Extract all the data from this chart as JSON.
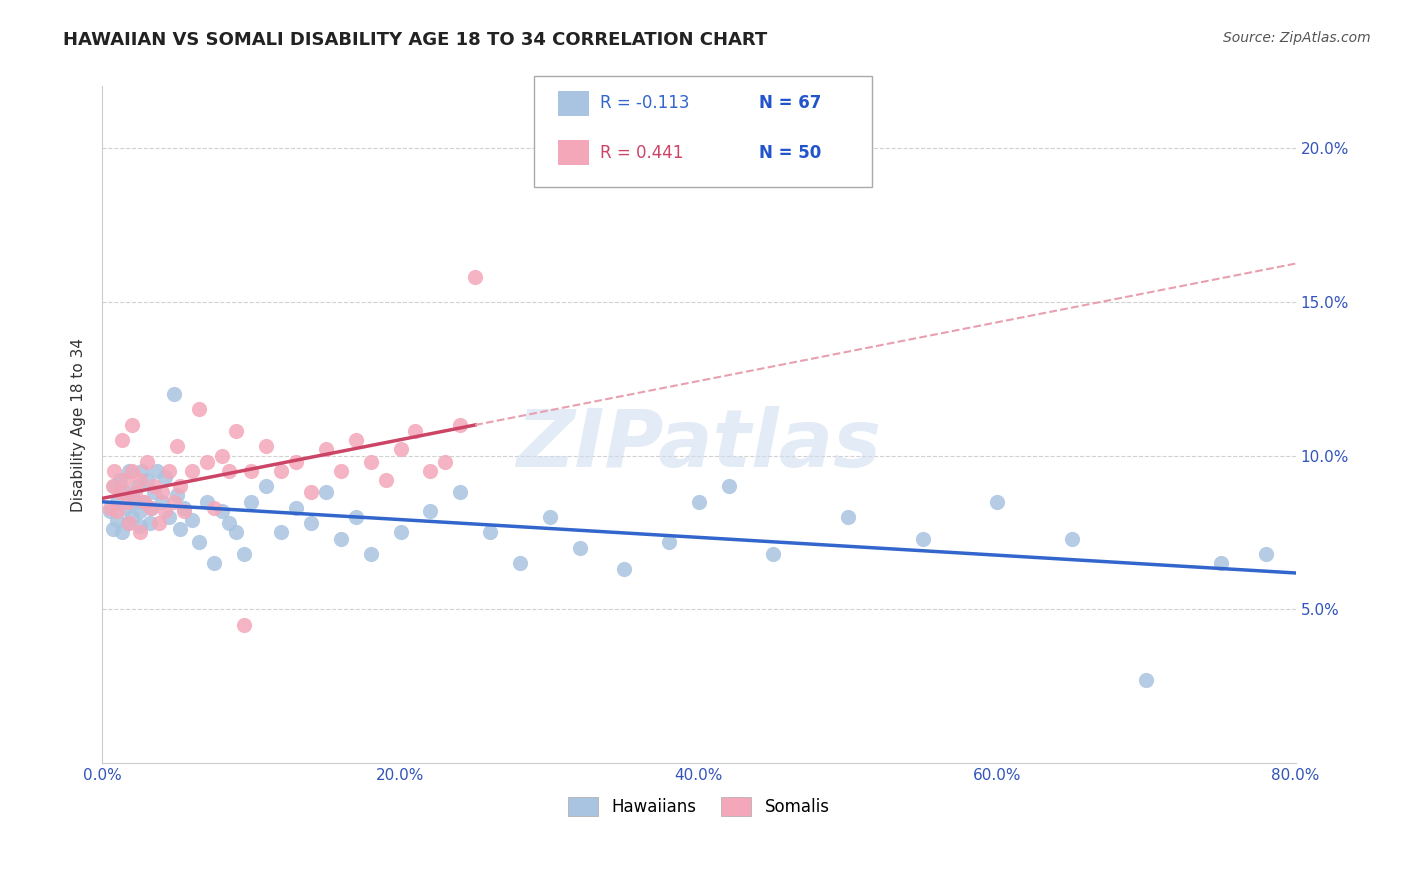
{
  "title": "HAWAIIAN VS SOMALI DISABILITY AGE 18 TO 34 CORRELATION CHART",
  "source": "Source: ZipAtlas.com",
  "ylabel_label": "Disability Age 18 to 34",
  "x_min": 0.0,
  "x_max": 0.8,
  "y_min": 0.0,
  "y_max": 0.22,
  "x_ticks": [
    0.0,
    0.2,
    0.4,
    0.6,
    0.8
  ],
  "x_tick_labels": [
    "0.0%",
    "20.0%",
    "40.0%",
    "60.0%",
    "80.0%"
  ],
  "y_ticks": [
    0.05,
    0.1,
    0.15,
    0.2
  ],
  "y_tick_labels": [
    "5.0%",
    "10.0%",
    "15.0%",
    "20.0%"
  ],
  "hawaiian_color": "#a8c4e0",
  "somali_color": "#f4a7b9",
  "hawaiian_line_color": "#3366cc",
  "somali_line_color": "#cc4466",
  "somali_dash_color": "#e8a0b0",
  "legend_r_hawaiian": "R = -0.113",
  "legend_n_hawaiian": "N = 67",
  "legend_r_somali": "R = 0.441",
  "legend_n_somali": "N = 50",
  "legend_label_hawaiian": "Hawaiians",
  "legend_label_somali": "Somalis",
  "hawaiian_x": [
    0.005,
    0.007,
    0.008,
    0.01,
    0.01,
    0.012,
    0.013,
    0.015,
    0.015,
    0.017,
    0.018,
    0.02,
    0.02,
    0.022,
    0.024,
    0.025,
    0.025,
    0.027,
    0.028,
    0.03,
    0.032,
    0.033,
    0.035,
    0.037,
    0.04,
    0.042,
    0.045,
    0.048,
    0.05,
    0.052,
    0.055,
    0.06,
    0.065,
    0.07,
    0.075,
    0.08,
    0.085,
    0.09,
    0.095,
    0.1,
    0.11,
    0.12,
    0.13,
    0.14,
    0.15,
    0.16,
    0.17,
    0.18,
    0.2,
    0.22,
    0.24,
    0.26,
    0.28,
    0.3,
    0.32,
    0.35,
    0.38,
    0.4,
    0.42,
    0.45,
    0.5,
    0.55,
    0.6,
    0.65,
    0.7,
    0.75,
    0.78
  ],
  "hawaiian_y": [
    0.082,
    0.076,
    0.09,
    0.085,
    0.079,
    0.092,
    0.075,
    0.088,
    0.083,
    0.078,
    0.095,
    0.08,
    0.087,
    0.085,
    0.09,
    0.082,
    0.077,
    0.095,
    0.085,
    0.092,
    0.078,
    0.083,
    0.088,
    0.095,
    0.085,
    0.093,
    0.08,
    0.12,
    0.087,
    0.076,
    0.083,
    0.079,
    0.072,
    0.085,
    0.065,
    0.082,
    0.078,
    0.075,
    0.068,
    0.085,
    0.09,
    0.075,
    0.083,
    0.078,
    0.088,
    0.073,
    0.08,
    0.068,
    0.075,
    0.082,
    0.088,
    0.075,
    0.065,
    0.08,
    0.07,
    0.063,
    0.072,
    0.085,
    0.09,
    0.068,
    0.08,
    0.073,
    0.085,
    0.073,
    0.027,
    0.065,
    0.068
  ],
  "somali_x": [
    0.005,
    0.007,
    0.008,
    0.01,
    0.012,
    0.013,
    0.015,
    0.017,
    0.018,
    0.02,
    0.02,
    0.022,
    0.025,
    0.025,
    0.028,
    0.03,
    0.033,
    0.035,
    0.038,
    0.04,
    0.042,
    0.045,
    0.048,
    0.05,
    0.052,
    0.055,
    0.06,
    0.065,
    0.07,
    0.075,
    0.08,
    0.085,
    0.09,
    0.095,
    0.1,
    0.11,
    0.12,
    0.13,
    0.14,
    0.15,
    0.16,
    0.17,
    0.18,
    0.19,
    0.2,
    0.21,
    0.22,
    0.23,
    0.24,
    0.25
  ],
  "somali_y": [
    0.083,
    0.09,
    0.095,
    0.082,
    0.088,
    0.105,
    0.092,
    0.085,
    0.078,
    0.095,
    0.11,
    0.088,
    0.075,
    0.092,
    0.085,
    0.098,
    0.083,
    0.09,
    0.078,
    0.088,
    0.082,
    0.095,
    0.085,
    0.103,
    0.09,
    0.082,
    0.095,
    0.115,
    0.098,
    0.083,
    0.1,
    0.095,
    0.108,
    0.045,
    0.095,
    0.103,
    0.095,
    0.098,
    0.088,
    0.102,
    0.095,
    0.105,
    0.098,
    0.092,
    0.102,
    0.108,
    0.095,
    0.098,
    0.11,
    0.158
  ],
  "watermark": "ZIPatlas",
  "background_color": "#ffffff",
  "grid_color": "#cccccc"
}
